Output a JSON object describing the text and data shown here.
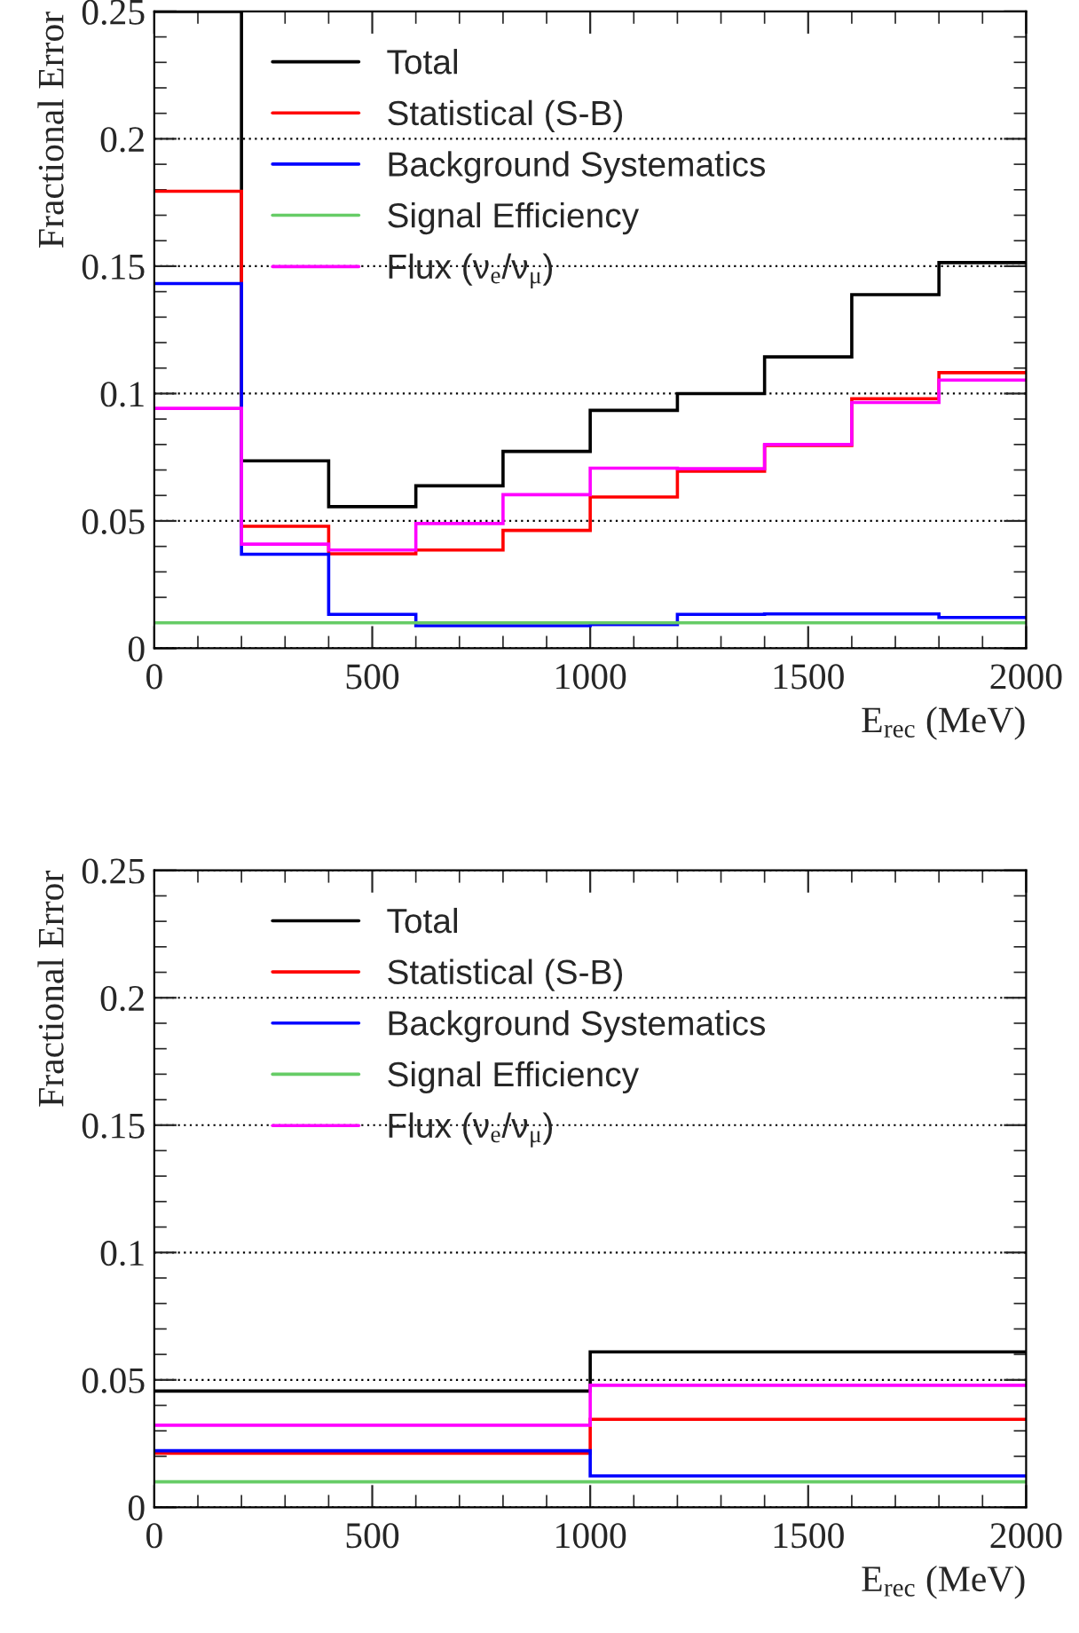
{
  "chart_data": [
    {
      "type": "histogram",
      "xlabel": "E$_{rec}$ (MeV)",
      "ylabel": "Fractional Error",
      "bins": [
        0,
        200,
        400,
        600,
        800,
        1000,
        1200,
        1400,
        1600,
        1800,
        2000
      ],
      "series": [
        {
          "name": "Total",
          "color": "#000000",
          "values": [
            0.25,
            0.0736,
            0.0556,
            0.0638,
            0.0773,
            0.0934,
            0.1,
            0.1144,
            0.1388,
            0.1514
          ]
        },
        {
          "name": "Statistical (S-B)",
          "color": "#ff0000",
          "values": [
            0.1794,
            0.0479,
            0.0371,
            0.0386,
            0.0463,
            0.0594,
            0.0695,
            0.0796,
            0.098,
            0.1082
          ]
        },
        {
          "name": "Background Systematics",
          "color": "#0000ff",
          "values": [
            0.1432,
            0.0369,
            0.0133,
            0.0089,
            0.0089,
            0.0093,
            0.0133,
            0.0135,
            0.0135,
            0.0121
          ]
        },
        {
          "name": "Signal Efficiency",
          "color": "#66cc66",
          "values": [
            0.01,
            0.01,
            0.01,
            0.01,
            0.01,
            0.01,
            0.01,
            0.01,
            0.01,
            0.01
          ]
        },
        {
          "name": "Flux (ν$_{e}$/ν$_{μ}$)",
          "color": "#ff00ff",
          "values": [
            0.0942,
            0.0409,
            0.0386,
            0.049,
            0.0603,
            0.0707,
            0.0705,
            0.08,
            0.0965,
            0.1053
          ]
        }
      ],
      "xlim": [
        0,
        2000
      ],
      "ylim": [
        0,
        0.25
      ],
      "xticks": [
        0,
        500,
        1000,
        1500,
        2000
      ],
      "yticks": [
        0,
        0.05,
        0.1,
        0.15,
        0.2,
        0.25
      ],
      "grid": "y",
      "legend": "top left"
    },
    {
      "type": "histogram",
      "xlabel": "E$_{rec}$ (MeV)",
      "ylabel": "Fractional Error",
      "bins": [
        0,
        1000,
        2000
      ],
      "series": [
        {
          "name": "Total",
          "color": "#000000",
          "values": [
            0.0456,
            0.061
          ]
        },
        {
          "name": "Statistical (S-B)",
          "color": "#ff0000",
          "values": [
            0.0212,
            0.0345
          ]
        },
        {
          "name": "Background Systematics",
          "color": "#0000ff",
          "values": [
            0.0222,
            0.0123
          ]
        },
        {
          "name": "Signal Efficiency",
          "color": "#66cc66",
          "values": [
            0.01,
            0.01
          ]
        },
        {
          "name": "Flux (ν$_{e}$/ν$_{μ}$)",
          "color": "#ff00ff",
          "values": [
            0.0322,
            0.0479
          ]
        }
      ],
      "xlim": [
        0,
        2000
      ],
      "ylim": [
        0,
        0.25
      ],
      "xticks": [
        0,
        500,
        1000,
        1500,
        2000
      ],
      "yticks": [
        0,
        0.05,
        0.1,
        0.15,
        0.2,
        0.25
      ],
      "grid": "y",
      "legend": "top left"
    }
  ]
}
